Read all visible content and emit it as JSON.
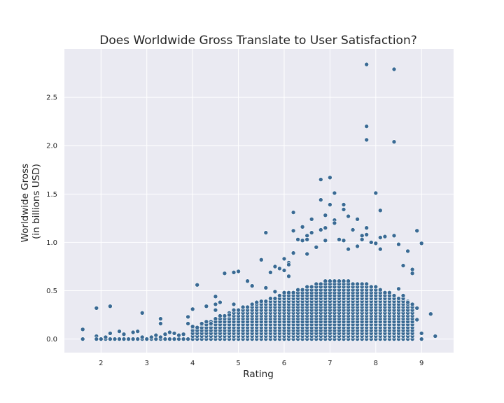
{
  "chart_data": {
    "type": "scatter",
    "title": "Does Worldwide Gross Translate to User Satisfaction?",
    "xlabel": "Rating",
    "ylabel": [
      "Worldwide Gross",
      "(in billions USD)"
    ],
    "xlim": [
      1.2,
      9.7
    ],
    "ylim": [
      -0.14,
      3.0
    ],
    "xticks": [
      2,
      3,
      4,
      5,
      6,
      7,
      8,
      9
    ],
    "yticks": [
      0.0,
      0.5,
      1.0,
      1.5,
      2.0,
      2.5
    ],
    "ytick_labels": [
      "0.0",
      "0.5",
      "1.0",
      "1.5",
      "2.0",
      "2.5"
    ],
    "grid": true,
    "background": "#eaeaf2",
    "point_color": "#3a6a94",
    "points": [
      [
        1.6,
        0.1
      ],
      [
        1.6,
        0.0
      ],
      [
        1.9,
        0.32
      ],
      [
        1.9,
        0.03
      ],
      [
        1.9,
        0.0
      ],
      [
        2.0,
        0.0
      ],
      [
        2.1,
        0.02
      ],
      [
        2.2,
        0.34
      ],
      [
        2.2,
        0.06
      ],
      [
        2.3,
        0.0
      ],
      [
        2.4,
        0.08
      ],
      [
        2.4,
        0.0
      ],
      [
        2.5,
        0.05
      ],
      [
        2.6,
        0.0
      ],
      [
        2.7,
        0.07
      ],
      [
        2.8,
        0.08
      ],
      [
        2.8,
        0.0
      ],
      [
        2.9,
        0.27
      ],
      [
        2.9,
        0.02
      ],
      [
        3.0,
        0.0
      ],
      [
        3.1,
        0.02
      ],
      [
        3.2,
        0.04
      ],
      [
        3.3,
        0.21
      ],
      [
        3.3,
        0.16
      ],
      [
        3.3,
        0.02
      ],
      [
        3.4,
        0.05
      ],
      [
        3.5,
        0.07
      ],
      [
        3.6,
        0.06
      ],
      [
        3.7,
        0.04
      ],
      [
        3.8,
        0.05
      ],
      [
        3.9,
        0.16
      ],
      [
        3.9,
        0.23
      ],
      [
        4.0,
        0.13
      ],
      [
        4.0,
        0.31
      ],
      [
        4.1,
        0.56
      ],
      [
        4.2,
        0.16
      ],
      [
        4.3,
        0.34
      ],
      [
        4.4,
        0.16
      ],
      [
        4.5,
        0.44
      ],
      [
        4.5,
        0.36
      ],
      [
        4.5,
        0.3
      ],
      [
        4.6,
        0.38
      ],
      [
        4.7,
        0.68
      ],
      [
        4.8,
        0.25
      ],
      [
        4.9,
        0.69
      ],
      [
        4.9,
        0.36
      ],
      [
        5.0,
        0.7
      ],
      [
        5.1,
        0.33
      ],
      [
        5.2,
        0.6
      ],
      [
        5.3,
        0.55
      ],
      [
        5.4,
        0.38
      ],
      [
        5.5,
        0.82
      ],
      [
        5.6,
        1.1
      ],
      [
        5.6,
        0.53
      ],
      [
        5.7,
        0.69
      ],
      [
        5.8,
        0.75
      ],
      [
        5.8,
        0.49
      ],
      [
        5.9,
        0.73
      ],
      [
        6.0,
        0.71
      ],
      [
        6.0,
        0.83
      ],
      [
        6.1,
        0.79
      ],
      [
        6.1,
        0.77
      ],
      [
        6.1,
        0.65
      ],
      [
        6.2,
        1.31
      ],
      [
        6.2,
        0.89
      ],
      [
        6.2,
        1.12
      ],
      [
        6.3,
        1.03
      ],
      [
        6.4,
        1.16
      ],
      [
        6.4,
        1.02
      ],
      [
        6.5,
        1.07
      ],
      [
        6.5,
        0.88
      ],
      [
        6.5,
        1.03
      ],
      [
        6.6,
        1.24
      ],
      [
        6.6,
        1.1
      ],
      [
        6.7,
        0.95
      ],
      [
        6.8,
        1.65
      ],
      [
        6.8,
        1.44
      ],
      [
        6.8,
        1.13
      ],
      [
        6.9,
        1.28
      ],
      [
        6.9,
        1.15
      ],
      [
        6.9,
        1.02
      ],
      [
        7.0,
        1.67
      ],
      [
        7.0,
        1.39
      ],
      [
        7.1,
        1.51
      ],
      [
        7.1,
        1.23
      ],
      [
        7.1,
        1.2
      ],
      [
        7.2,
        1.03
      ],
      [
        7.3,
        1.39
      ],
      [
        7.3,
        1.34
      ],
      [
        7.3,
        1.02
      ],
      [
        7.4,
        1.27
      ],
      [
        7.4,
        0.93
      ],
      [
        7.5,
        1.13
      ],
      [
        7.6,
        1.24
      ],
      [
        7.6,
        0.96
      ],
      [
        7.7,
        1.03
      ],
      [
        7.7,
        1.07
      ],
      [
        7.8,
        2.84
      ],
      [
        7.8,
        2.2
      ],
      [
        7.8,
        2.06
      ],
      [
        7.8,
        1.15
      ],
      [
        7.8,
        1.08
      ],
      [
        7.9,
        1.0
      ],
      [
        8.0,
        1.51
      ],
      [
        8.0,
        0.99
      ],
      [
        8.1,
        1.33
      ],
      [
        8.1,
        1.05
      ],
      [
        8.1,
        0.93
      ],
      [
        8.2,
        1.06
      ],
      [
        8.4,
        2.79
      ],
      [
        8.4,
        2.04
      ],
      [
        8.4,
        1.07
      ],
      [
        8.5,
        0.98
      ],
      [
        8.6,
        0.76
      ],
      [
        8.7,
        0.91
      ],
      [
        8.8,
        0.72
      ],
      [
        8.8,
        0.68
      ],
      [
        8.9,
        1.12
      ],
      [
        9.0,
        0.99
      ],
      [
        8.9,
        0.32
      ],
      [
        8.9,
        0.2
      ],
      [
        9.0,
        0.06
      ],
      [
        9.0,
        0.0
      ],
      [
        9.2,
        0.26
      ],
      [
        9.3,
        0.03
      ],
      [
        8.6,
        0.45
      ],
      [
        8.7,
        0.38
      ],
      [
        8.5,
        0.52
      ]
    ],
    "clusters": [
      {
        "x": [
          4.0,
          5.0
        ],
        "ymax": [
          0.12,
          0.32
        ]
      },
      {
        "x": [
          5.0,
          6.0
        ],
        "ymax": [
          0.32,
          0.48
        ]
      },
      {
        "x": [
          6.0,
          7.0
        ],
        "ymax": [
          0.48,
          0.62
        ]
      },
      {
        "x": [
          7.0,
          7.8
        ],
        "ymax": [
          0.62,
          0.58
        ]
      },
      {
        "x": [
          7.8,
          8.8
        ],
        "ymax": [
          0.58,
          0.38
        ]
      }
    ]
  }
}
